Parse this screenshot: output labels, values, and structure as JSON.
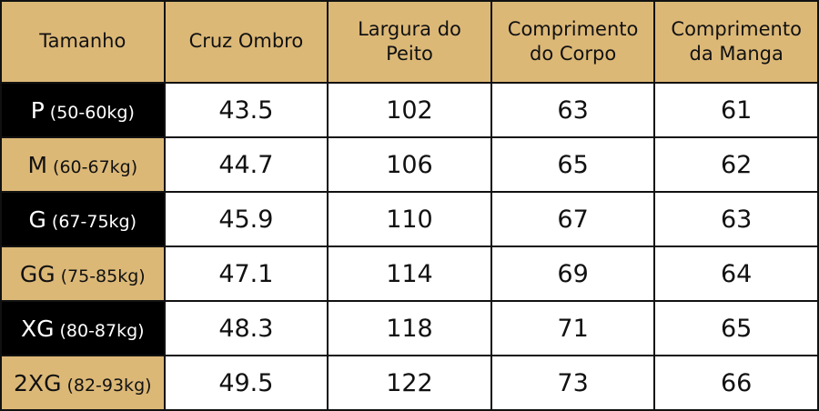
{
  "table": {
    "headers": [
      "Tamanho",
      "Cruz Ombro",
      "Largura do Peito",
      "Comprimento do Corpo",
      "Comprimento da Manga"
    ],
    "rows": [
      {
        "size": "P",
        "weight": "(50-60kg)",
        "values": [
          "43.5",
          "102",
          "63",
          "61"
        ]
      },
      {
        "size": "M",
        "weight": "(60-67kg)",
        "values": [
          "44.7",
          "106",
          "65",
          "62"
        ]
      },
      {
        "size": "G",
        "weight": "(67-75kg)",
        "values": [
          "45.9",
          "110",
          "67",
          "63"
        ]
      },
      {
        "size": "GG",
        "weight": "(75-85kg)",
        "values": [
          "47.1",
          "114",
          "69",
          "64"
        ]
      },
      {
        "size": "XG",
        "weight": "(80-87kg)",
        "values": [
          "48.3",
          "118",
          "71",
          "65"
        ]
      },
      {
        "size": "2XG",
        "weight": "(82-93kg)",
        "values": [
          "49.5",
          "122",
          "73",
          "66"
        ]
      }
    ]
  }
}
